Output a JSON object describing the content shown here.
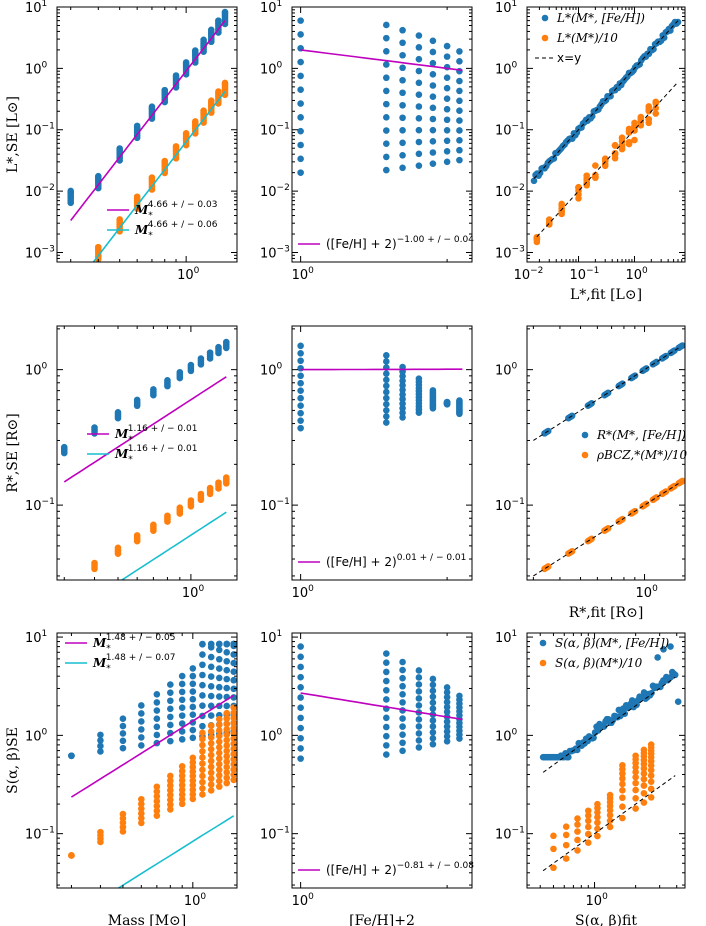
{
  "colors": {
    "blue": "#1f77b4",
    "orange": "#ff7f0e",
    "magenta": "#bf00bf",
    "cyan": "#17becf",
    "dash": "#000000"
  },
  "chart_data": [
    {
      "id": "L_mass",
      "type": "scatter",
      "xlog": true,
      "ylog": true,
      "xlim": [
        0.26,
        1.7
      ],
      "ylim": [
        0.0007,
        10
      ],
      "xticks": [
        {
          "v": 1,
          "base": "10",
          "exp": "0"
        }
      ],
      "yticks": [
        {
          "v": 0.001,
          "base": "10",
          "exp": "−3"
        },
        {
          "v": 0.01,
          "base": "10",
          "exp": "−2"
        },
        {
          "v": 0.1,
          "base": "10",
          "exp": "−1"
        },
        {
          "v": 1,
          "base": "10",
          "exp": "0"
        },
        {
          "v": 10,
          "base": "10",
          "exp": "1"
        }
      ],
      "xlabel": "",
      "ylabel": "L*,SE [L⊙]",
      "gen": {
        "xs": [
          0.3,
          0.4,
          0.5,
          0.6,
          0.7,
          0.8,
          0.9,
          1.0,
          1.1,
          1.2,
          1.3,
          1.4,
          1.5
        ],
        "exp": 4.66,
        "spread": [
          0.8,
          1.25
        ],
        "n": 7,
        "blue_scale": 1,
        "orange_scale": 0.1
      },
      "lines": [
        {
          "name": "M*^{4.66+/−0.03}",
          "exp": 4.66,
          "amp": 6.0,
          "x": [
            0.3,
            1.5
          ],
          "color": "magenta"
        },
        {
          "name": "M*^{4.66+/−0.06}",
          "exp": 4.66,
          "amp": 0.42,
          "x": [
            0.3,
            1.5
          ],
          "color": "cyan"
        }
      ],
      "legend": [
        {
          "color": "magenta",
          "base": "M",
          "sub": "*",
          "sup": "4.66 + / − 0.03"
        },
        {
          "color": "cyan",
          "base": "M",
          "sub": "*",
          "sup": "4.66 + / − 0.06"
        }
      ]
    },
    {
      "id": "L_feh",
      "type": "scatter",
      "xlog": true,
      "ylog": true,
      "xlim": [
        0.96,
        2.25
      ],
      "ylim": [
        0.0007,
        10
      ],
      "xticks": [
        {
          "v": 1,
          "base": "10",
          "exp": "0"
        }
      ],
      "yticks": [
        {
          "v": 0.001,
          "base": "10",
          "exp": "−3"
        },
        {
          "v": 0.01,
          "base": "10",
          "exp": "−2"
        },
        {
          "v": 0.1,
          "base": "10",
          "exp": "−1"
        },
        {
          "v": 1,
          "base": "10",
          "exp": "0"
        },
        {
          "v": 10,
          "base": "10",
          "exp": "1"
        }
      ],
      "xlabel": "",
      "ylabel": "",
      "gen": {
        "xs": [
          1.0,
          1.5,
          1.62,
          1.75,
          1.87,
          2.0,
          2.12
        ],
        "ymin": 0.02,
        "ymax": 6.0,
        "n": 12
      },
      "lines": [
        {
          "name": "([Fe/H]+2)^{−1.00+/−0.04}",
          "exp": -1.0,
          "amp": 2.0,
          "x": [
            1.0,
            2.15
          ],
          "color": "magenta"
        }
      ],
      "legend": [
        {
          "color": "magenta",
          "text": "([Fe/H] + 2)",
          "sup": "−1.00 + / − 0.04"
        }
      ]
    },
    {
      "id": "L_fit",
      "type": "scatter",
      "xlog": true,
      "ylog": true,
      "xlim": [
        0.012,
        8
      ],
      "ylim": [
        0.0007,
        10
      ],
      "xticks": [
        {
          "v": 0.01,
          "base": "10",
          "exp": "−2"
        },
        {
          "v": 0.1,
          "base": "10",
          "exp": "−1"
        },
        {
          "v": 1,
          "base": "10",
          "exp": "0"
        }
      ],
      "yticks": [
        {
          "v": 0.001,
          "base": "10",
          "exp": "−3"
        },
        {
          "v": 0.01,
          "base": "10",
          "exp": "−2"
        },
        {
          "v": 0.1,
          "base": "10",
          "exp": "−1"
        },
        {
          "v": 1,
          "base": "10",
          "exp": "0"
        },
        {
          "v": 10,
          "base": "10",
          "exp": "1"
        }
      ],
      "xlabel": "L*,fit [L⊙]",
      "ylabel": "",
      "gen": {
        "kind": "fit",
        "xmin": 0.016,
        "xmax": 6.0,
        "blue_n": 95,
        "orange_n": 80,
        "orange_scale": 0.1
      },
      "legend": [
        {
          "color": "blue",
          "marker": "dot",
          "text": "L*(M*, [Fe/H])"
        },
        {
          "color": "orange",
          "marker": "dot",
          "text": "L*(M*)/10"
        },
        {
          "color": "dash",
          "marker": "dash",
          "text": "x=y"
        }
      ]
    },
    {
      "id": "R_mass",
      "type": "scatter",
      "xlog": true,
      "ylog": true,
      "xlim": [
        0.28,
        1.55
      ],
      "ylim": [
        0.028,
        2.1
      ],
      "xticks": [
        {
          "v": 1,
          "base": "10",
          "exp": "0"
        }
      ],
      "yticks": [
        {
          "v": 0.1,
          "base": "10",
          "exp": "−1"
        },
        {
          "v": 1,
          "base": "10",
          "exp": "0"
        }
      ],
      "xlabel": "",
      "ylabel": "R*,SE [R⊙]",
      "gen": {
        "xs": [
          0.3,
          0.4,
          0.5,
          0.6,
          0.7,
          0.8,
          0.9,
          1.0,
          1.1,
          1.2,
          1.3,
          1.4
        ],
        "exp": 1.16,
        "spread": [
          0.96,
          1.06
        ],
        "n": 4,
        "blue_amp": 1.02,
        "orange_amp": 0.102
      },
      "lines": [
        {
          "name": "M*^{1.16+/−0.01}",
          "exp": 1.16,
          "amp": 0.96,
          "x": [
            0.3,
            1.4
          ],
          "color": "magenta"
        },
        {
          "name": "M*^{1.16+/−0.01}",
          "exp": 1.16,
          "amp": 0.096,
          "x": [
            0.3,
            1.4
          ],
          "color": "cyan"
        }
      ],
      "legend": [
        {
          "color": "magenta",
          "base": "M",
          "sub": "*",
          "sup": "1.16 + / − 0.01"
        },
        {
          "color": "cyan",
          "base": "M",
          "sub": "*",
          "sup": "1.16 + / − 0.01"
        }
      ]
    },
    {
      "id": "R_feh",
      "type": "scatter",
      "xlog": true,
      "ylog": true,
      "xlim": [
        0.96,
        2.25
      ],
      "ylim": [
        0.028,
        2.1
      ],
      "xticks": [
        {
          "v": 1,
          "base": "10",
          "exp": "0"
        }
      ],
      "yticks": [
        {
          "v": 0.1,
          "base": "10",
          "exp": "−1"
        },
        {
          "v": 1,
          "base": "10",
          "exp": "0"
        }
      ],
      "xlabel": "",
      "ylabel": "",
      "gen": {
        "xs": [
          1.0,
          1.5,
          1.62,
          1.75,
          1.87,
          2.0,
          2.12
        ],
        "ymin": 0.37,
        "ymax": 1.5,
        "n": 12
      },
      "lines": [
        {
          "name": "([Fe/H]+2)^{0.01+/−0.01}",
          "exp": 0.01,
          "amp": 1.0,
          "x": [
            1.0,
            2.15
          ],
          "color": "magenta"
        }
      ],
      "legend": [
        {
          "color": "magenta",
          "text": "([Fe/H] + 2)",
          "sup": "0.01 + / − 0.01"
        }
      ]
    },
    {
      "id": "R_fit",
      "type": "scatter",
      "xlog": true,
      "ylog": true,
      "xlim": [
        0.28,
        1.55
      ],
      "ylim": [
        0.028,
        2.1
      ],
      "xticks": [
        {
          "v": 1,
          "base": "10",
          "exp": "0"
        }
      ],
      "yticks": [
        {
          "v": 0.1,
          "base": "10",
          "exp": "−1"
        },
        {
          "v": 1,
          "base": "10",
          "exp": "0"
        }
      ],
      "xlabel": "R*,fit [R⊙]",
      "ylabel": "",
      "gen": {
        "kind": "rfit",
        "xs": [
          0.3,
          0.4,
          0.5,
          0.6,
          0.7,
          0.8,
          0.9,
          1.0,
          1.1,
          1.2,
          1.3,
          1.4
        ]
      },
      "legend": [
        {
          "color": "blue",
          "marker": "dot",
          "text": "R*(M*, [Fe/H])"
        },
        {
          "color": "orange",
          "marker": "dot",
          "text": "ρBCZ,*(M*)/10"
        }
      ]
    },
    {
      "id": "S_mass",
      "type": "scatter",
      "xlog": true,
      "ylog": true,
      "xlim": [
        0.26,
        1.55
      ],
      "ylim": [
        0.028,
        11
      ],
      "xticks": [
        {
          "v": 1,
          "base": "10",
          "exp": "0"
        }
      ],
      "yticks": [
        {
          "v": 0.1,
          "base": "10",
          "exp": "−1"
        },
        {
          "v": 1,
          "base": "10",
          "exp": "0"
        },
        {
          "v": 10,
          "base": "10",
          "exp": "1"
        }
      ],
      "xlabel": "Mass [M⊙]",
      "ylabel": "S(α, β)SE",
      "gen": {
        "kind": "smass",
        "xs": [
          0.3,
          0.4,
          0.5,
          0.6,
          0.7,
          0.8,
          0.9,
          1.0,
          1.1,
          1.2,
          1.3,
          1.4,
          1.5
        ]
      },
      "lines": [
        {
          "name": "M*^{1.48+/−0.05}",
          "exp": 1.48,
          "amp": 2.55,
          "x": [
            0.3,
            1.5
          ],
          "color": "magenta"
        },
        {
          "name": "M*^{1.48+/−0.07}",
          "exp": 1.48,
          "amp": 0.152,
          "x": [
            0.3,
            1.5
          ],
          "color": "cyan"
        }
      ],
      "legend": [
        {
          "color": "magenta",
          "base": "M",
          "sub": "*",
          "sup": "1.48 + / − 0.05"
        },
        {
          "color": "cyan",
          "base": "M",
          "sub": "*",
          "sup": "1.48 + / − 0.07"
        }
      ]
    },
    {
      "id": "S_feh",
      "type": "scatter",
      "xlog": true,
      "ylog": true,
      "xlim": [
        0.96,
        2.25
      ],
      "ylim": [
        0.028,
        11
      ],
      "xticks": [
        {
          "v": 1,
          "base": "10",
          "exp": "0"
        }
      ],
      "yticks": [
        {
          "v": 0.1,
          "base": "10",
          "exp": "−1"
        },
        {
          "v": 1,
          "base": "10",
          "exp": "0"
        },
        {
          "v": 10,
          "base": "10",
          "exp": "1"
        }
      ],
      "xlabel": "[Fe/H]+2",
      "ylabel": "",
      "gen": {
        "xs": [
          1.0,
          1.5,
          1.62,
          1.75,
          1.87,
          2.0,
          2.12
        ],
        "ymin": 0.58,
        "ymax": 8.0,
        "n": 12
      },
      "lines": [
        {
          "name": "([Fe/H]+2)^{−0.81+/−0.08}",
          "exp": -0.81,
          "amp": 2.7,
          "x": [
            1.0,
            2.15
          ],
          "color": "magenta"
        }
      ],
      "legend": [
        {
          "color": "magenta",
          "text": "([Fe/H] + 2)",
          "sup": "−0.81 + / − 0.08"
        }
      ]
    },
    {
      "id": "S_fit",
      "type": "scatter",
      "xlog": true,
      "ylog": true,
      "xlim": [
        0.32,
        4.6
      ],
      "ylim": [
        0.028,
        11
      ],
      "xticks": [
        {
          "v": 1,
          "base": "10",
          "exp": "0"
        }
      ],
      "yticks": [
        {
          "v": 0.1,
          "base": "10",
          "exp": "−1"
        },
        {
          "v": 1,
          "base": "10",
          "exp": "0"
        },
        {
          "v": 10,
          "base": "10",
          "exp": "1"
        }
      ],
      "xlabel": "S(α, β)fit",
      "ylabel": "",
      "gen": {
        "kind": "sfit"
      },
      "legend": [
        {
          "color": "blue",
          "marker": "dot",
          "text": "S(α, β)(M*, [Fe/H])"
        },
        {
          "color": "orange",
          "marker": "dot",
          "text": "S(α, β)(M*)/10"
        }
      ]
    }
  ]
}
